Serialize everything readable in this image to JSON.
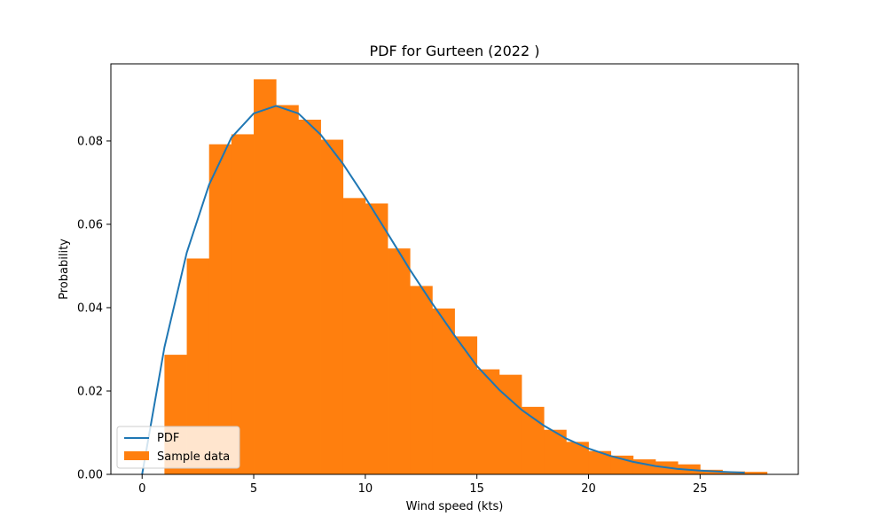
{
  "chart_data": {
    "type": "bar",
    "title": "PDF for Gurteen (2022 )",
    "xlabel": "Wind speed (kts)",
    "ylabel": "Probability",
    "xlim": [
      -1.4,
      29.4
    ],
    "ylim": [
      0,
      0.0985
    ],
    "xticks": [
      0,
      5,
      10,
      15,
      20,
      25
    ],
    "yticks": [
      0.0,
      0.02,
      0.04,
      0.06,
      0.08
    ],
    "ytick_labels": [
      "0.00",
      "0.02",
      "0.04",
      "0.06",
      "0.08"
    ],
    "grid": false,
    "legend_position": "lower-left",
    "series": [
      {
        "name": "Sample data",
        "kind": "histogram",
        "color": "#ff7f0e",
        "bin_edges": [
          1,
          2,
          3,
          4,
          5,
          6,
          7,
          8,
          9,
          10,
          11,
          12,
          13,
          14,
          15,
          16,
          17,
          18,
          19,
          20,
          21,
          22,
          23,
          24,
          25,
          26,
          27,
          28
        ],
        "values": [
          0.0287,
          0.0518,
          0.0792,
          0.0816,
          0.0948,
          0.0886,
          0.0851,
          0.0803,
          0.0663,
          0.065,
          0.0542,
          0.0452,
          0.0398,
          0.0331,
          0.0252,
          0.0239,
          0.0162,
          0.0107,
          0.0078,
          0.0056,
          0.0045,
          0.0036,
          0.0031,
          0.0024,
          0.0011,
          0.0007,
          0.0006
        ]
      },
      {
        "name": "PDF",
        "kind": "line",
        "color": "#1f77b4",
        "x": [
          0,
          1,
          2,
          3,
          4,
          5,
          6,
          7,
          8,
          9,
          10,
          11,
          12,
          13,
          14,
          15,
          16,
          17,
          18,
          19,
          20,
          21,
          22,
          23,
          24,
          25,
          26,
          27
        ],
        "values": [
          0.0,
          0.0305,
          0.0532,
          0.0695,
          0.0808,
          0.0866,
          0.0884,
          0.0866,
          0.0815,
          0.0745,
          0.0664,
          0.0578,
          0.0491,
          0.041,
          0.0333,
          0.026,
          0.0203,
          0.0155,
          0.0117,
          0.0086,
          0.0062,
          0.0044,
          0.003,
          0.002,
          0.0013,
          0.0009,
          0.0006,
          0.0004
        ]
      }
    ]
  }
}
